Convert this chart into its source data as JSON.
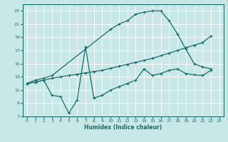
{
  "xlabel": "Humidex (Indice chaleur)",
  "ylabel": "",
  "xlim": [
    -0.5,
    23.5
  ],
  "ylim": [
    7,
    24
  ],
  "xticks": [
    0,
    1,
    2,
    3,
    4,
    5,
    6,
    7,
    8,
    9,
    10,
    11,
    12,
    13,
    14,
    15,
    16,
    17,
    18,
    19,
    20,
    21,
    22,
    23
  ],
  "yticks": [
    7,
    9,
    11,
    13,
    15,
    17,
    19,
    21,
    23
  ],
  "bg_color": "#c8e8e8",
  "line_color": "#1a6b6b",
  "grid_color": "#ffffff",
  "curve1_x": [
    0,
    1,
    2,
    3,
    10,
    11,
    12,
    13,
    14,
    15,
    16,
    17,
    18,
    19,
    20,
    21,
    22
  ],
  "curve1_y": [
    12,
    12.5,
    12.8,
    13.2,
    20.2,
    21.0,
    21.5,
    22.5,
    22.8,
    23.0,
    23.0,
    21.5,
    19.5,
    17.2,
    15.0,
    14.5,
    14.2
  ],
  "curve2_x": [
    0,
    1,
    2,
    3,
    4,
    5,
    6,
    7,
    8,
    9,
    10,
    11,
    12,
    13,
    14,
    15,
    16,
    17,
    18,
    19,
    20,
    21,
    22
  ],
  "curve2_y": [
    12,
    12.2,
    12.5,
    12.8,
    13.0,
    13.2,
    13.4,
    13.6,
    13.8,
    14.0,
    14.3,
    14.6,
    14.9,
    15.2,
    15.5,
    15.8,
    16.2,
    16.6,
    17.0,
    17.4,
    17.8,
    18.2,
    19.2
  ],
  "curve3_x": [
    0,
    1,
    2,
    3,
    4,
    5,
    6,
    7,
    8,
    9,
    10,
    11,
    12,
    13,
    14,
    15,
    16,
    17,
    18,
    19,
    20,
    21,
    22
  ],
  "curve3_y": [
    12,
    12.2,
    12.5,
    10.2,
    10.0,
    7.5,
    9.5,
    17.5,
    9.8,
    10.2,
    11.0,
    11.5,
    12.0,
    12.5,
    14.2,
    13.2,
    13.5,
    14.0,
    14.2,
    13.5,
    13.3,
    13.2,
    14.0
  ]
}
